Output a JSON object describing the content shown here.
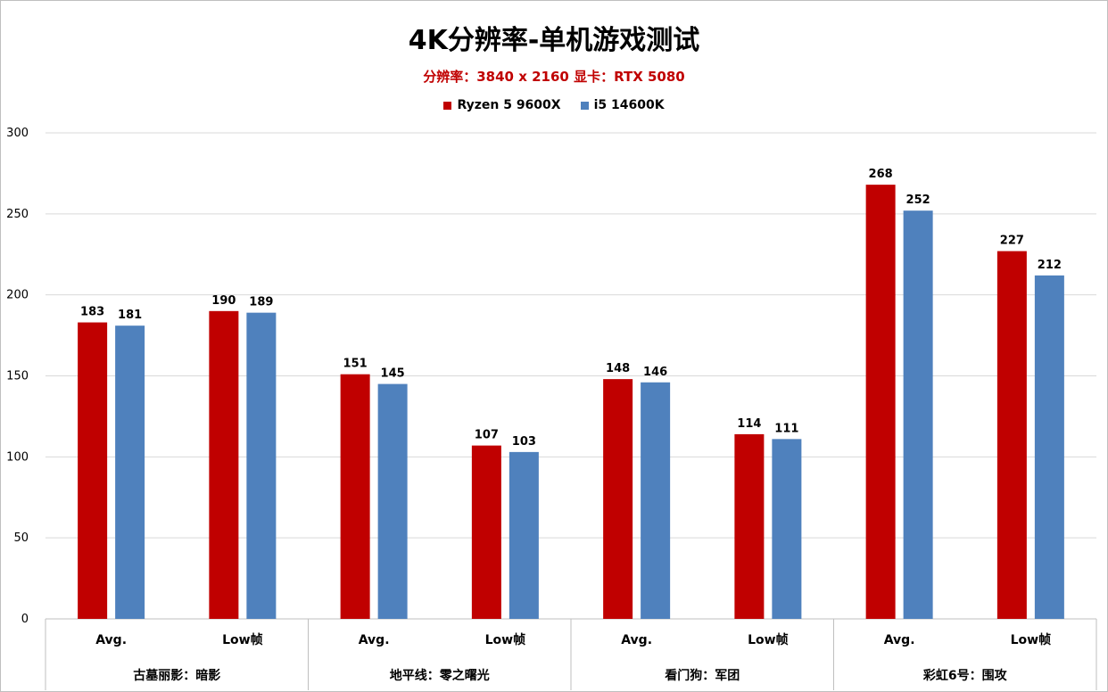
{
  "title": "4K分辨率-单机游戏测试",
  "subtitle": "分辨率：3840 x 2160  显卡：RTX 5080",
  "colors": {
    "ryzen": "#c00000",
    "intel": "#4f81bd",
    "grid": "#d9d9d9",
    "axis": "#bfbfbf"
  },
  "chart_data": {
    "type": "bar",
    "title": "4K分辨率-单机游戏测试",
    "subtitle": "分辨率：3840 x 2160  显卡：RTX 5080",
    "ylim": [
      0,
      300
    ],
    "yticks": [
      0,
      50,
      100,
      150,
      200,
      250,
      300
    ],
    "grid": true,
    "legend_position": "top",
    "groups": [
      {
        "name": "古墓丽影：暗影",
        "categories": [
          "Avg.",
          "Low帧"
        ]
      },
      {
        "name": "地平线：零之曙光",
        "categories": [
          "Avg.",
          "Low帧"
        ]
      },
      {
        "name": "看门狗：军团",
        "categories": [
          "Avg.",
          "Low帧"
        ]
      },
      {
        "name": "彩虹6号：围攻",
        "categories": [
          "Avg.",
          "Low帧"
        ]
      }
    ],
    "categories": [
      "Avg.",
      "Low帧",
      "Avg.",
      "Low帧",
      "Avg.",
      "Low帧",
      "Avg.",
      "Low帧"
    ],
    "series": [
      {
        "name": "Ryzen 5 9600X",
        "color": "#c00000",
        "values": [
          183,
          190,
          151,
          107,
          148,
          114,
          268,
          227
        ]
      },
      {
        "name": "i5 14600K",
        "color": "#4f81bd",
        "values": [
          181,
          189,
          145,
          103,
          146,
          111,
          252,
          212
        ]
      }
    ]
  }
}
